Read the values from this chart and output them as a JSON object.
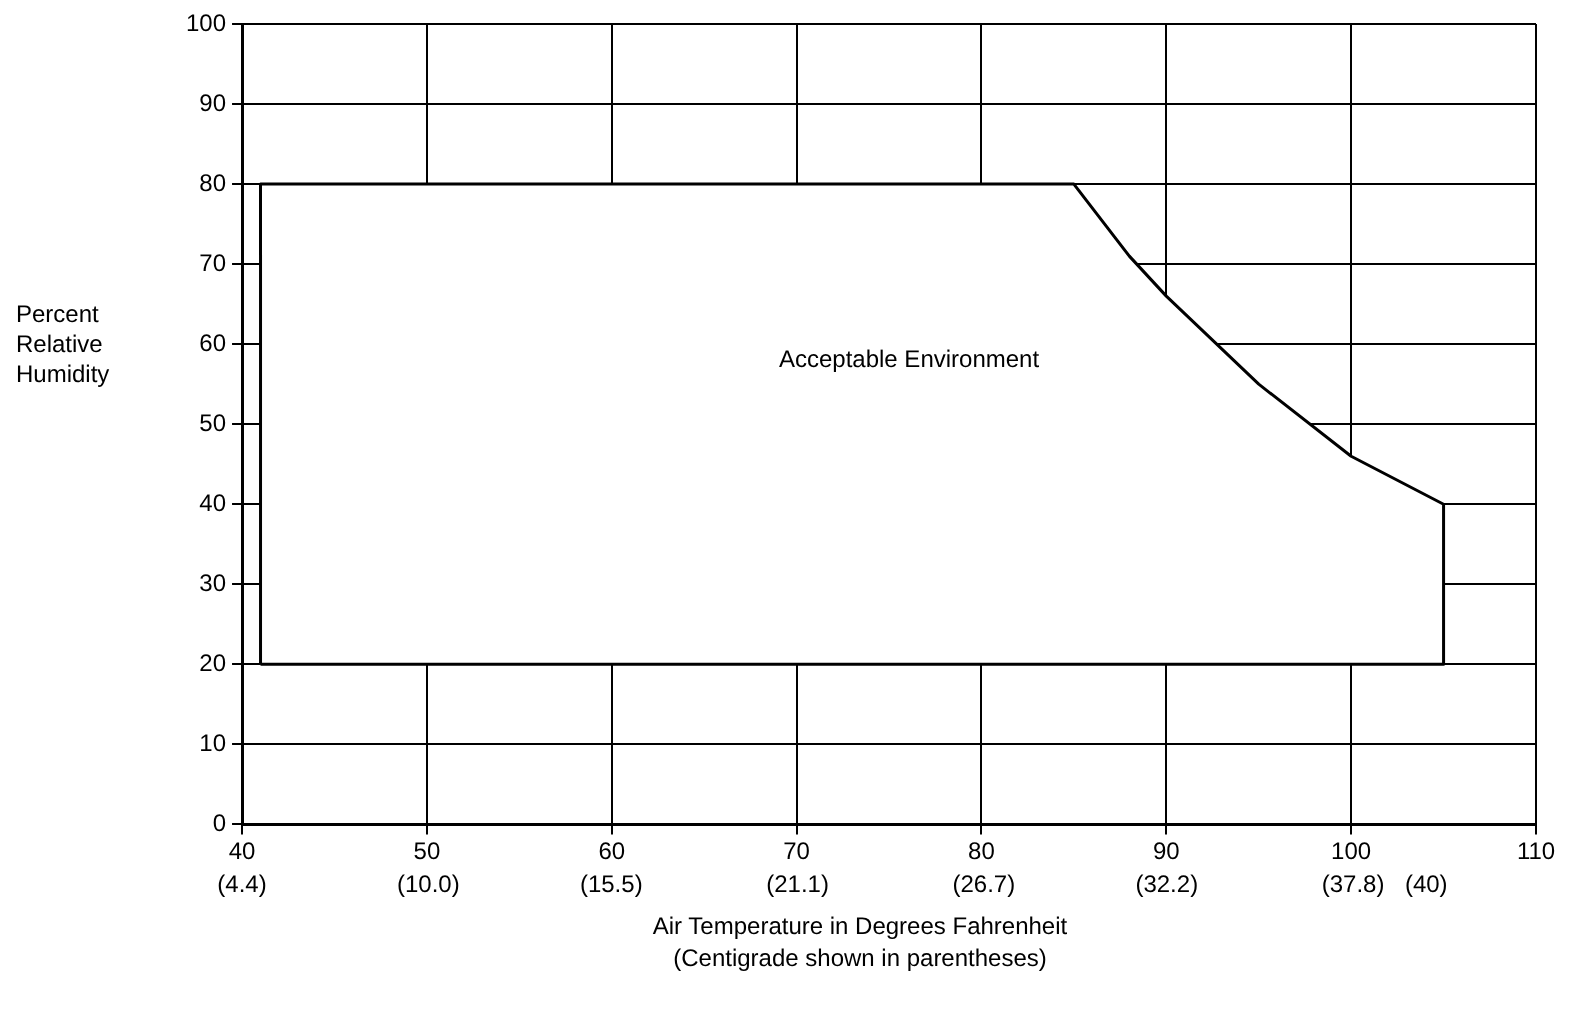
{
  "chart_data": {
    "type": "area",
    "xlabel": "Air Temperature in Degrees Fahrenheit",
    "ylabel": "Percent Relative Humidity",
    "annotations": [
      "Acceptable Environment",
      "(Centigrade shown in parentheses)"
    ],
    "series": [
      {
        "color": "#ffffff",
        "x": [
          41,
          41,
          85,
          88,
          90,
          95,
          100,
          105,
          105,
          41
        ],
        "values": [
          20,
          80,
          80,
          71,
          66,
          55,
          46,
          40,
          20,
          20
        ]
      }
    ],
    "xlim": [
      40,
      110
    ],
    "ylim": [
      0,
      100
    ],
    "xticks": [
      40,
      50,
      60,
      70,
      80,
      90,
      100,
      110
    ],
    "x2lim": [
      4.4,
      43.3
    ],
    "x2ticks": [
      {
        "value": 4.4,
        "label": "(4.4)"
      },
      {
        "value": 10,
        "label": "(10.0)"
      },
      {
        "value": 15.5,
        "label": "(15.5)"
      },
      {
        "value": 21.1,
        "label": "(21.1)"
      },
      {
        "value": 26.7,
        "label": "(26.7)"
      },
      {
        "value": 32.2,
        "label": "(32.2)"
      },
      {
        "value": 37.8,
        "label": "(37.8)"
      },
      {
        "value": 40,
        "label": "(40)"
      }
    ],
    "yticks": [
      0,
      10,
      20,
      30,
      40,
      50,
      60,
      70,
      80,
      90,
      100
    ],
    "grid": true,
    "legend": false
  }
}
